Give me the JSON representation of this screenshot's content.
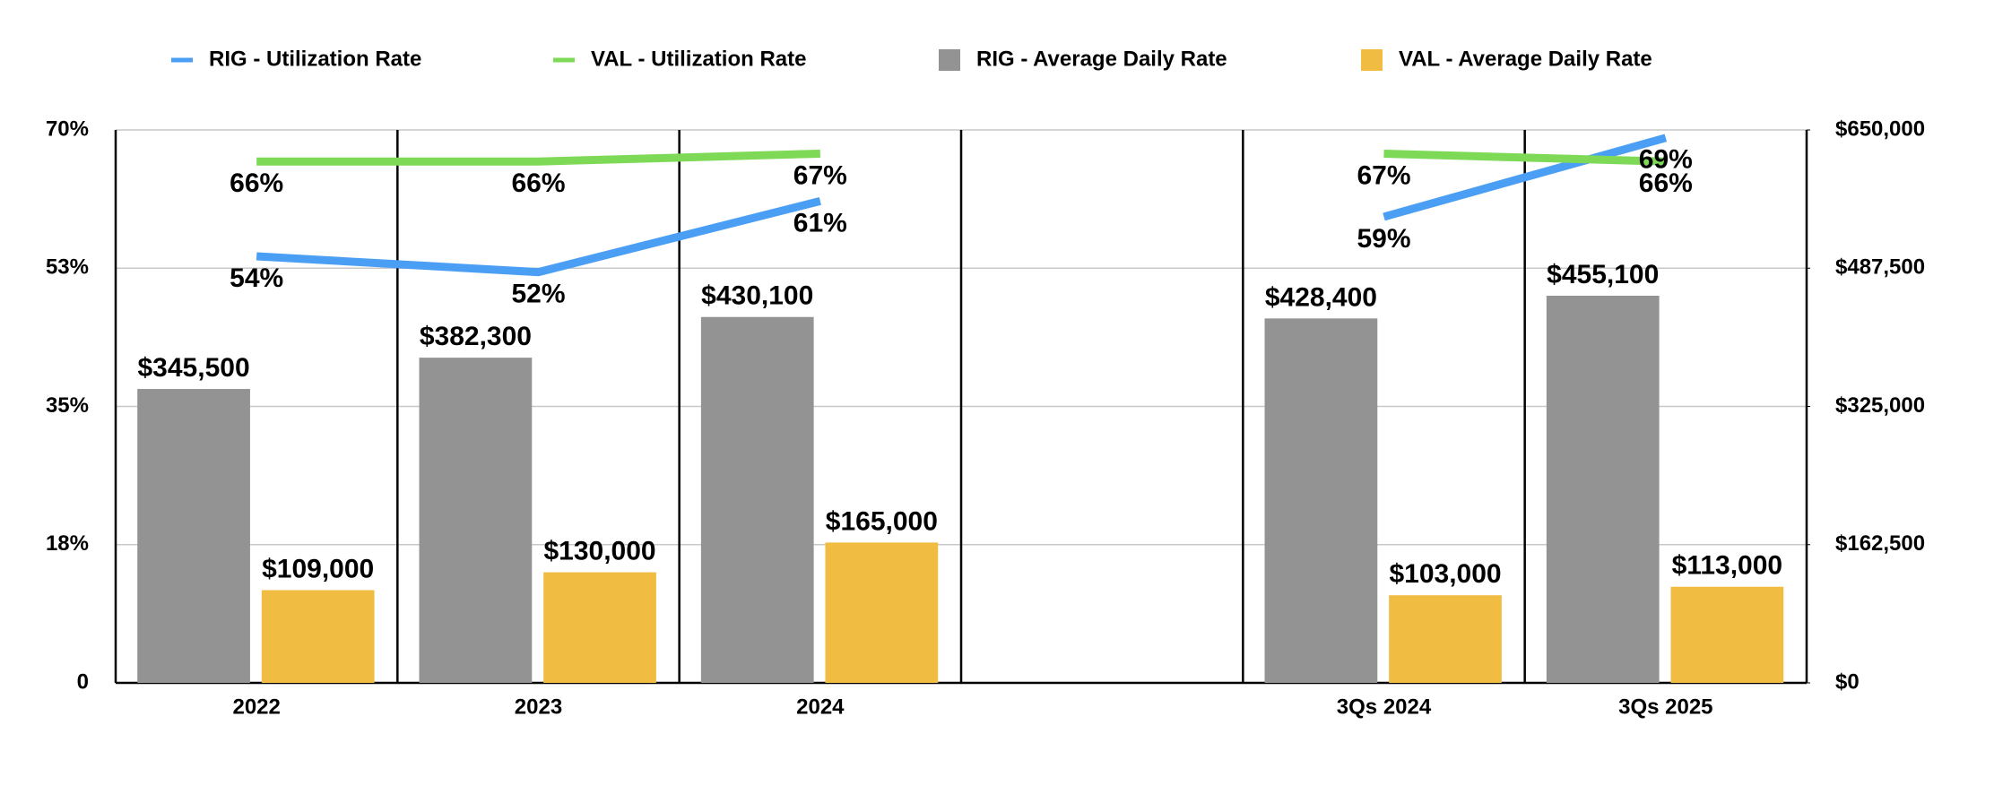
{
  "chart_data": {
    "type": "bar",
    "categories": [
      "2022",
      "2023",
      "2024",
      null,
      "3Qs 2024",
      "3Qs 2025"
    ],
    "series": [
      {
        "name": "RIG - Utilization Rate",
        "type": "line",
        "color": "#4a9ff5",
        "axis": "y",
        "values": [
          54,
          52,
          61,
          null,
          59,
          69
        ],
        "value_labels": [
          "54%",
          "52%",
          "61%",
          null,
          "59%",
          "69%"
        ]
      },
      {
        "name": "VAL - Utilization Rate",
        "type": "line",
        "color": "#7ed957",
        "axis": "y",
        "values": [
          66,
          66,
          67,
          null,
          67,
          66
        ],
        "value_labels": [
          "66%",
          "66%",
          "67%",
          null,
          "67%",
          "66%"
        ]
      },
      {
        "name": "RIG - Average Daily Rate",
        "type": "bar",
        "color": "#939393",
        "axis": "y2",
        "values": [
          345500,
          382300,
          430100,
          null,
          428400,
          455100
        ],
        "value_labels": [
          "$345,500",
          "$382,300",
          "$430,100",
          null,
          "$428,400",
          "$455,100"
        ]
      },
      {
        "name": "VAL - Average Daily Rate",
        "type": "bar",
        "color": "#f0bc42",
        "axis": "y2",
        "values": [
          109000,
          130000,
          165000,
          null,
          103000,
          113000
        ],
        "value_labels": [
          "$109,000",
          "$130,000",
          "$165,000",
          null,
          "$103,000",
          "$113,000"
        ]
      }
    ],
    "ylim": [
      0,
      70
    ],
    "yticks": [
      0,
      {
        "value": 17.5,
        "label": "18%"
      },
      {
        "value": 35,
        "label": "35%"
      },
      {
        "value": 52.5,
        "label": "53%"
      },
      {
        "value": 70,
        "label": "70%"
      }
    ],
    "y2lim": [
      0,
      650000
    ],
    "y2ticks": [
      {
        "value": 0,
        "label": "$0"
      },
      {
        "value": 162500,
        "label": "$162,500"
      },
      {
        "value": 325000,
        "label": "$325,000"
      },
      {
        "value": 487500,
        "label": "$487,500"
      },
      {
        "value": 650000,
        "label": "$650,000"
      }
    ],
    "grid": true,
    "legend": "top"
  }
}
